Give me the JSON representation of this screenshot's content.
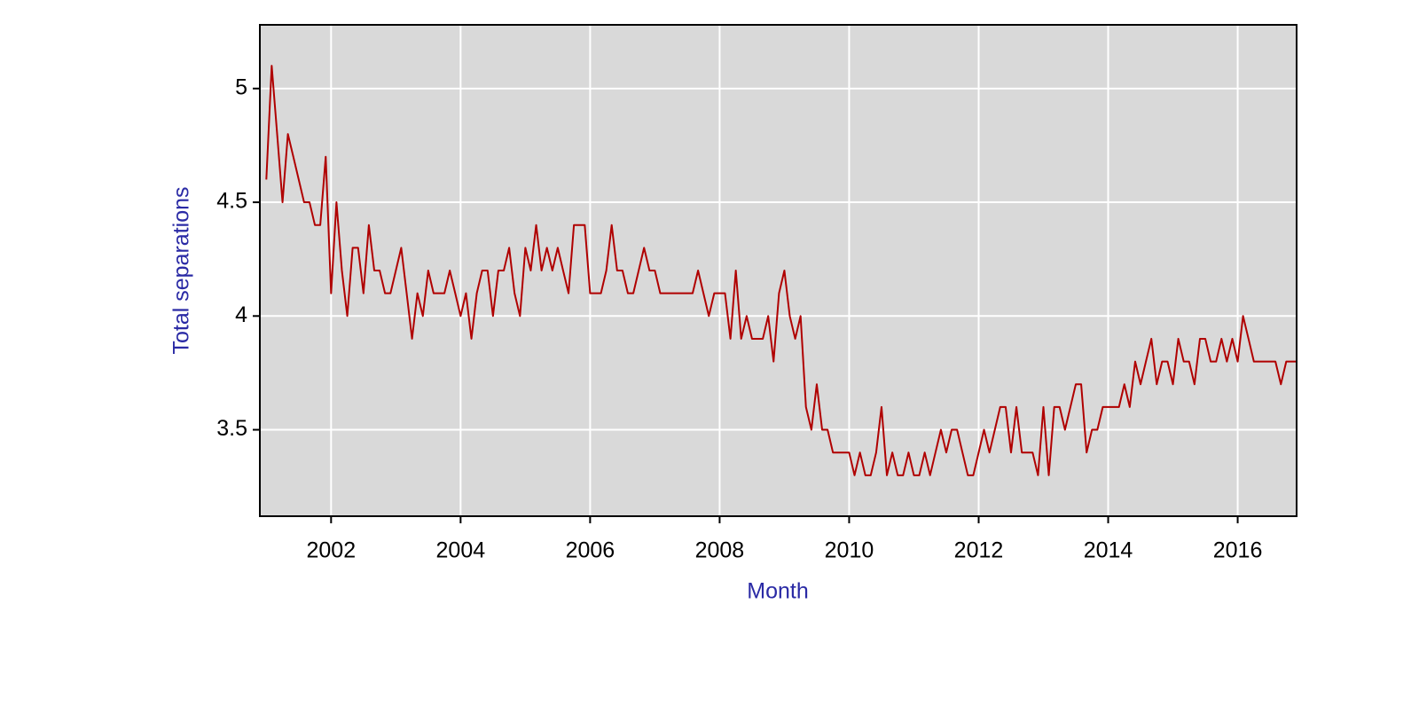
{
  "chart_data": {
    "type": "line",
    "x_label": "Month",
    "y_label": "Total separations",
    "xlim": [
      2000.9,
      2016.91
    ],
    "ylim": [
      3.12,
      5.28
    ],
    "xticks": [
      2002,
      2004,
      2006,
      2008,
      2010,
      2012,
      2014,
      2016
    ],
    "yticks": [
      3.5,
      4,
      4.5,
      5
    ],
    "grid": true,
    "color": "#b00000",
    "background": "#d9d9d9",
    "label_color": "#2a2aa5",
    "x": [
      2001.0,
      2001.083,
      2001.167,
      2001.25,
      2001.333,
      2001.417,
      2001.5,
      2001.583,
      2001.667,
      2001.75,
      2001.833,
      2001.917,
      2002.0,
      2002.083,
      2002.167,
      2002.25,
      2002.333,
      2002.417,
      2002.5,
      2002.583,
      2002.667,
      2002.75,
      2002.833,
      2002.917,
      2003.0,
      2003.083,
      2003.167,
      2003.25,
      2003.333,
      2003.417,
      2003.5,
      2003.583,
      2003.667,
      2003.75,
      2003.833,
      2003.917,
      2004.0,
      2004.083,
      2004.167,
      2004.25,
      2004.333,
      2004.417,
      2004.5,
      2004.583,
      2004.667,
      2004.75,
      2004.833,
      2004.917,
      2005.0,
      2005.083,
      2005.167,
      2005.25,
      2005.333,
      2005.417,
      2005.5,
      2005.583,
      2005.667,
      2005.75,
      2005.833,
      2005.917,
      2006.0,
      2006.083,
      2006.167,
      2006.25,
      2006.333,
      2006.417,
      2006.5,
      2006.583,
      2006.667,
      2006.75,
      2006.833,
      2006.917,
      2007.0,
      2007.083,
      2007.167,
      2007.25,
      2007.333,
      2007.417,
      2007.5,
      2007.583,
      2007.667,
      2007.75,
      2007.833,
      2007.917,
      2008.0,
      2008.083,
      2008.167,
      2008.25,
      2008.333,
      2008.417,
      2008.5,
      2008.583,
      2008.667,
      2008.75,
      2008.833,
      2008.917,
      2009.0,
      2009.083,
      2009.167,
      2009.25,
      2009.333,
      2009.417,
      2009.5,
      2009.583,
      2009.667,
      2009.75,
      2009.833,
      2009.917,
      2010.0,
      2010.083,
      2010.167,
      2010.25,
      2010.333,
      2010.417,
      2010.5,
      2010.583,
      2010.667,
      2010.75,
      2010.833,
      2010.917,
      2011.0,
      2011.083,
      2011.167,
      2011.25,
      2011.333,
      2011.417,
      2011.5,
      2011.583,
      2011.667,
      2011.75,
      2011.833,
      2011.917,
      2012.0,
      2012.083,
      2012.167,
      2012.25,
      2012.333,
      2012.417,
      2012.5,
      2012.583,
      2012.667,
      2012.75,
      2012.833,
      2012.917,
      2013.0,
      2013.083,
      2013.167,
      2013.25,
      2013.333,
      2013.417,
      2013.5,
      2013.583,
      2013.667,
      2013.75,
      2013.833,
      2013.917,
      2014.0,
      2014.083,
      2014.167,
      2014.25,
      2014.333,
      2014.417,
      2014.5,
      2014.583,
      2014.667,
      2014.75,
      2014.833,
      2014.917,
      2015.0,
      2015.083,
      2015.167,
      2015.25,
      2015.333,
      2015.417,
      2015.5,
      2015.583,
      2015.667,
      2015.75,
      2015.833,
      2015.917,
      2016.0,
      2016.083,
      2016.167,
      2016.25,
      2016.333,
      2016.417,
      2016.5,
      2016.583,
      2016.667,
      2016.75,
      2016.833,
      2016.917
    ],
    "values": [
      4.6,
      5.1,
      4.8,
      4.5,
      4.8,
      4.7,
      4.6,
      4.5,
      4.5,
      4.4,
      4.4,
      4.7,
      4.1,
      4.5,
      4.2,
      4.0,
      4.3,
      4.3,
      4.1,
      4.4,
      4.2,
      4.2,
      4.1,
      4.1,
      4.2,
      4.3,
      4.1,
      3.9,
      4.1,
      4.0,
      4.2,
      4.1,
      4.1,
      4.1,
      4.2,
      4.1,
      4.0,
      4.1,
      3.9,
      4.1,
      4.2,
      4.2,
      4.0,
      4.2,
      4.2,
      4.3,
      4.1,
      4.0,
      4.3,
      4.2,
      4.4,
      4.2,
      4.3,
      4.2,
      4.3,
      4.2,
      4.1,
      4.4,
      4.4,
      4.4,
      4.1,
      4.1,
      4.1,
      4.2,
      4.4,
      4.2,
      4.2,
      4.1,
      4.1,
      4.2,
      4.3,
      4.2,
      4.2,
      4.1,
      4.1,
      4.1,
      4.1,
      4.1,
      4.1,
      4.1,
      4.2,
      4.1,
      4.0,
      4.1,
      4.1,
      4.1,
      3.9,
      4.2,
      3.9,
      4.0,
      3.9,
      3.9,
      3.9,
      4.0,
      3.8,
      4.1,
      4.2,
      4.0,
      3.9,
      4.0,
      3.6,
      3.5,
      3.7,
      3.5,
      3.5,
      3.4,
      3.4,
      3.4,
      3.4,
      3.3,
      3.4,
      3.3,
      3.3,
      3.4,
      3.6,
      3.3,
      3.4,
      3.3,
      3.3,
      3.4,
      3.3,
      3.3,
      3.4,
      3.3,
      3.4,
      3.5,
      3.4,
      3.5,
      3.5,
      3.4,
      3.3,
      3.3,
      3.4,
      3.5,
      3.4,
      3.5,
      3.6,
      3.6,
      3.4,
      3.6,
      3.4,
      3.4,
      3.4,
      3.3,
      3.6,
      3.3,
      3.6,
      3.6,
      3.5,
      3.6,
      3.7,
      3.7,
      3.4,
      3.5,
      3.5,
      3.6,
      3.6,
      3.6,
      3.6,
      3.7,
      3.6,
      3.8,
      3.7,
      3.8,
      3.9,
      3.7,
      3.8,
      3.8,
      3.7,
      3.9,
      3.8,
      3.8,
      3.7,
      3.9,
      3.9,
      3.8,
      3.8,
      3.9,
      3.8,
      3.9,
      3.8,
      4.0,
      3.9,
      3.8,
      3.8,
      3.8,
      3.8,
      3.8,
      3.7,
      3.8,
      3.8,
      3.8
    ]
  }
}
